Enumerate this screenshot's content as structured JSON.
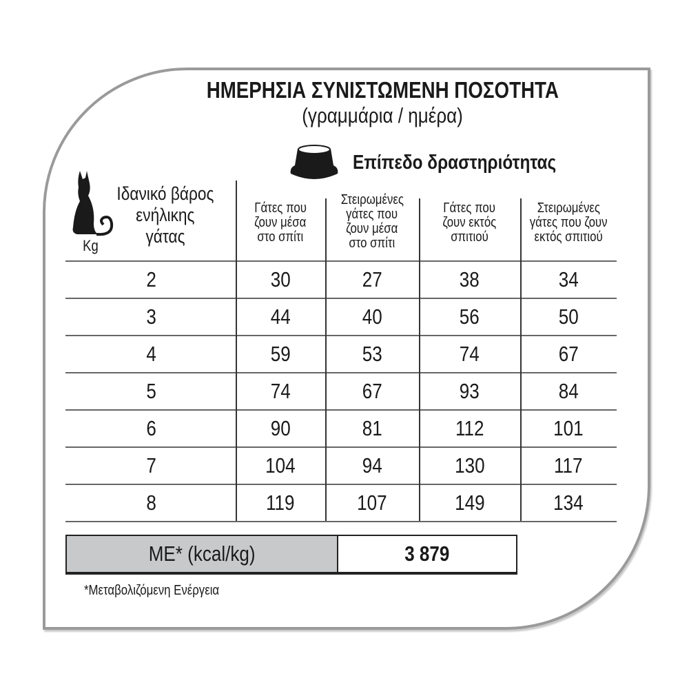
{
  "title": "ΗΜΕΡΗΣΙΑ ΣΥΝΙΣΤΩΜΕΝΗ ΠΟΣΟΤΗΤΑ",
  "subtitle": "(γραμμάρια / ημέρα)",
  "activity_label": "Επίπεδο δραστηριότητας",
  "icons": {
    "bowl": "food-bowl-icon",
    "cat": "cat-silhouette-icon"
  },
  "table": {
    "weight_header": [
      "Ιδανικό βάρος",
      "ενήλικης",
      "γάτας"
    ],
    "unit": "Kg",
    "columns": [
      [
        "Γάτες που",
        "ζουν μέσα",
        "στο σπίτι"
      ],
      [
        "Στειρωμένες",
        "γάτες που",
        "ζουν μέσα",
        "στο σπίτι"
      ],
      [
        "Γάτες που",
        "ζουν εκτός",
        "σπιτιού"
      ],
      [
        "Στειρωμένες",
        "γάτες που ζουν",
        "εκτός σπιτιού"
      ]
    ],
    "rows": [
      [
        "2",
        "30",
        "27",
        "38",
        "34"
      ],
      [
        "3",
        "44",
        "40",
        "56",
        "50"
      ],
      [
        "4",
        "59",
        "53",
        "74",
        "67"
      ],
      [
        "5",
        "74",
        "67",
        "93",
        "84"
      ],
      [
        "6",
        "90",
        "81",
        "112",
        "101"
      ],
      [
        "7",
        "104",
        "94",
        "130",
        "117"
      ],
      [
        "8",
        "119",
        "107",
        "149",
        "134"
      ]
    ]
  },
  "energy": {
    "label": "ME* (kcal/kg)",
    "value": "3 879",
    "label_bg": "#c8c9cb"
  },
  "footnote": "*Μεταβολιζόμενη Ενέργεια"
}
